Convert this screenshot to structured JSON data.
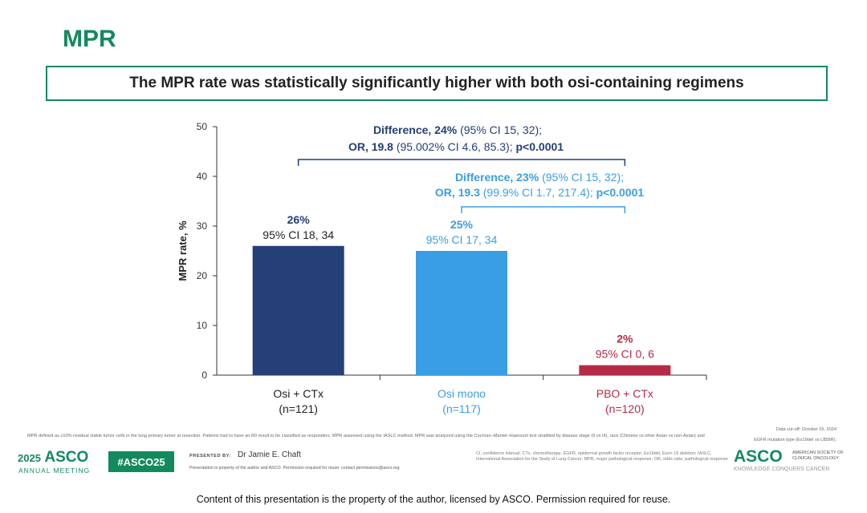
{
  "slide": {
    "title": "MPR",
    "headline": "The MPR rate was statistically significantly higher with both osi-containing regimens"
  },
  "chart_data": {
    "type": "bar",
    "ylabel": "MPR rate, %",
    "ylim": [
      0,
      50
    ],
    "yticks": [
      "0",
      "10",
      "20",
      "30",
      "40",
      "50"
    ],
    "bars": [
      {
        "label": "Osi + CTx",
        "n": "(n=121)",
        "value": 26,
        "pct": "26%",
        "ci": "95% CI 18, 34",
        "color": "#253f77"
      },
      {
        "label": "Osi mono",
        "n": "(n=117)",
        "value": 25,
        "pct": "25%",
        "ci": "95% CI 17, 34",
        "color": "#3a9ee4"
      },
      {
        "label": "PBO + CTx",
        "n": "(n=120)",
        "value": 2,
        "pct": "2%",
        "ci": "95% CI 0, 6",
        "color": "#b52b45"
      }
    ],
    "comparisons": [
      {
        "line1_bold": "Difference, 24%",
        "line1_rest": " (95% CI 15, 32);",
        "line2_bold": "OR, 19.8",
        "line2_rest": " (95.002% CI 4.6, 85.3); ",
        "line2_p": "p<0.0001",
        "color": "#253f77"
      },
      {
        "line1_bold": "Difference, 23%",
        "line1_rest": " (95% CI 15, 32);",
        "line2_bold": "OR, 19.3",
        "line2_rest": " (99.9% CI 1.7, 217.4); ",
        "line2_p": "p<0.0001",
        "color": "#3a9ee4"
      }
    ]
  },
  "footer": {
    "footnote": "MPR defined as ≤10% residual viable tumor cells in the lung primary tumor at resection. Patients had to have an R0 result to be classified as responders. MPR assessed using the IASLC method. MPR was analyzed using the Cochran–Mantel–Haenszel test stratified by disease stage (II vs III), race (Chinese vs other Asian vs non-Asian) and",
    "datacut_1": "Data cut-off: October 15, 2024",
    "datacut_2": "EGFR mutation type (Ex19del vs L858R).",
    "meeting_year": "2025",
    "meeting_name": "ASCO",
    "meeting_sub": "ANNUAL MEETING",
    "hashtag": "#ASCO25",
    "presented_by": "PRESENTED BY:",
    "presenter": "Dr Jamie E. Chaft",
    "property_note": "Presentation is property of the author and ASCO. Permission required for reuse; contact permissions@asco.org",
    "abbreviations": "CI, confidence interval; CTx, chemotherapy; EGFR, epidermal growth factor receptor; Ex19del, Exon 19 deletion; IASLC, International Association for the Study of Lung Cancer; MPR, major pathological response; OR, odds ratio; pathological response",
    "right_logo": "ASCO",
    "right_logo_sub": "KNOWLEDGE CONQUERS CANCER",
    "society": "AMERICAN SOCIETY OF CLINICAL ONCOLOGY",
    "copyright": "Content of this presentation is the property of the author, licensed by ASCO. Permission required for reuse."
  },
  "colors": {
    "brand_green": "#138a5e",
    "navy": "#253f77",
    "light_blue": "#3a9ee4",
    "red": "#b52b45"
  }
}
